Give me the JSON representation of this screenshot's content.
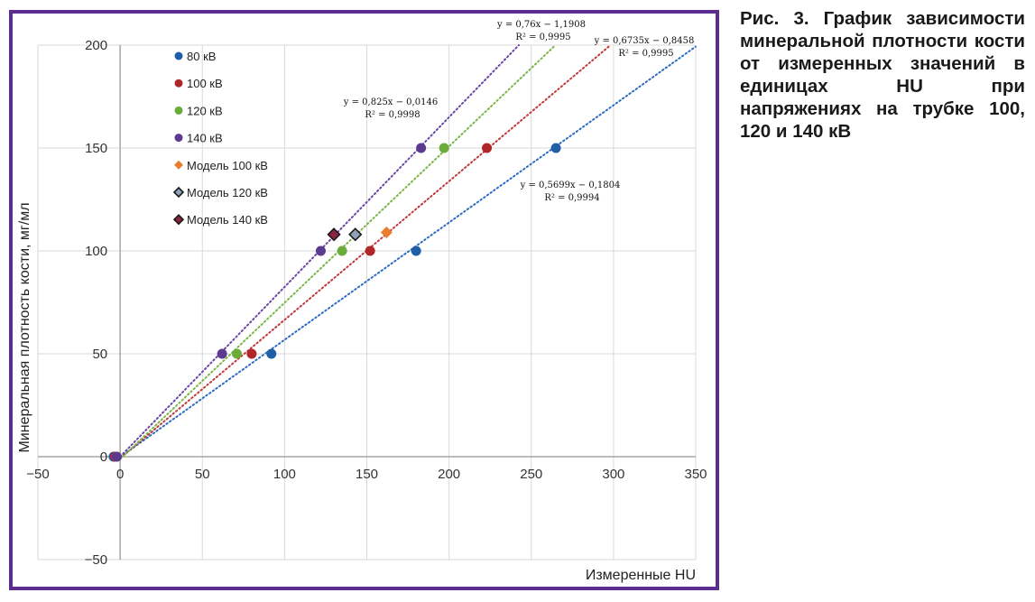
{
  "caption": "Рис. 3. График зависимости минеральной плотности кости от измеренных значений в единицах HU при напряжениях на трубке 100, 120 и 140 кВ",
  "colors": {
    "frame": "#5b2d8e",
    "grid": "#d9d9d9",
    "axis": "#a6a6a6"
  },
  "chart_data": {
    "type": "scatter",
    "xlabel": "Измеренные HU",
    "ylabel": "Минеральная плотность кости, мг/мл",
    "xlim": [
      -50,
      350
    ],
    "ylim": [
      -50,
      200
    ],
    "xticks": [
      "−50",
      "0",
      "50",
      "100",
      "150",
      "200",
      "250",
      "300",
      "350"
    ],
    "yticks": [
      "−50",
      "0",
      "50",
      "100",
      "150",
      "200"
    ],
    "grid": true,
    "legend_position": "top-left",
    "series": [
      {
        "name": "80 кВ",
        "color": "#1f5fa8",
        "marker": "circle",
        "x": [
          -4,
          92,
          180,
          265
        ],
        "y": [
          0,
          50,
          100,
          150
        ]
      },
      {
        "name": "100 кВ",
        "color": "#b0272a",
        "marker": "circle",
        "x": [
          -3,
          80,
          152,
          223
        ],
        "y": [
          0,
          50,
          100,
          150
        ]
      },
      {
        "name": "120 кВ",
        "color": "#6aac3a",
        "marker": "circle",
        "x": [
          -2,
          71,
          135,
          197
        ],
        "y": [
          0,
          50,
          100,
          150
        ]
      },
      {
        "name": "140 кВ",
        "color": "#5b3a8f",
        "marker": "circle",
        "x": [
          -2,
          62,
          122,
          183
        ],
        "y": [
          0,
          50,
          100,
          150
        ]
      },
      {
        "name": "Модель 100 кВ",
        "color": "#e87d2f",
        "marker": "diamond",
        "x": [
          162
        ],
        "y": [
          109
        ]
      },
      {
        "name": "Модель 120 кВ",
        "color": "#8fa2b8",
        "marker": "diamond-outlined",
        "x": [
          143
        ],
        "y": [
          108
        ]
      },
      {
        "name": "Модель 140 кВ",
        "color": "#8a2540",
        "marker": "diamond-outlined",
        "x": [
          130
        ],
        "y": [
          108
        ]
      }
    ],
    "trendlines": [
      {
        "series": "80 кВ",
        "color": "#2b6cc0",
        "slope": 0.5699,
        "intercept": -0.1804,
        "equation": "y = 0,5699x − 0,1804",
        "r2": "R² = 0,9994"
      },
      {
        "series": "100 кВ",
        "color": "#c0393b",
        "slope": 0.6735,
        "intercept": -0.8458,
        "equation": "y = 0,6735x − 0,8458",
        "r2": "R² = 0,9995"
      },
      {
        "series": "120 кВ",
        "color": "#7ab648",
        "slope": 0.76,
        "intercept": -1.1908,
        "equation": "y = 0,76x − 1,1908",
        "r2": "R² = 0,9995"
      },
      {
        "series": "140 кВ",
        "color": "#6a45a8",
        "slope": 0.825,
        "intercept": -0.0146,
        "equation": "y = 0,825x − 0,0146",
        "r2": "R² = 0,9998"
      }
    ]
  }
}
